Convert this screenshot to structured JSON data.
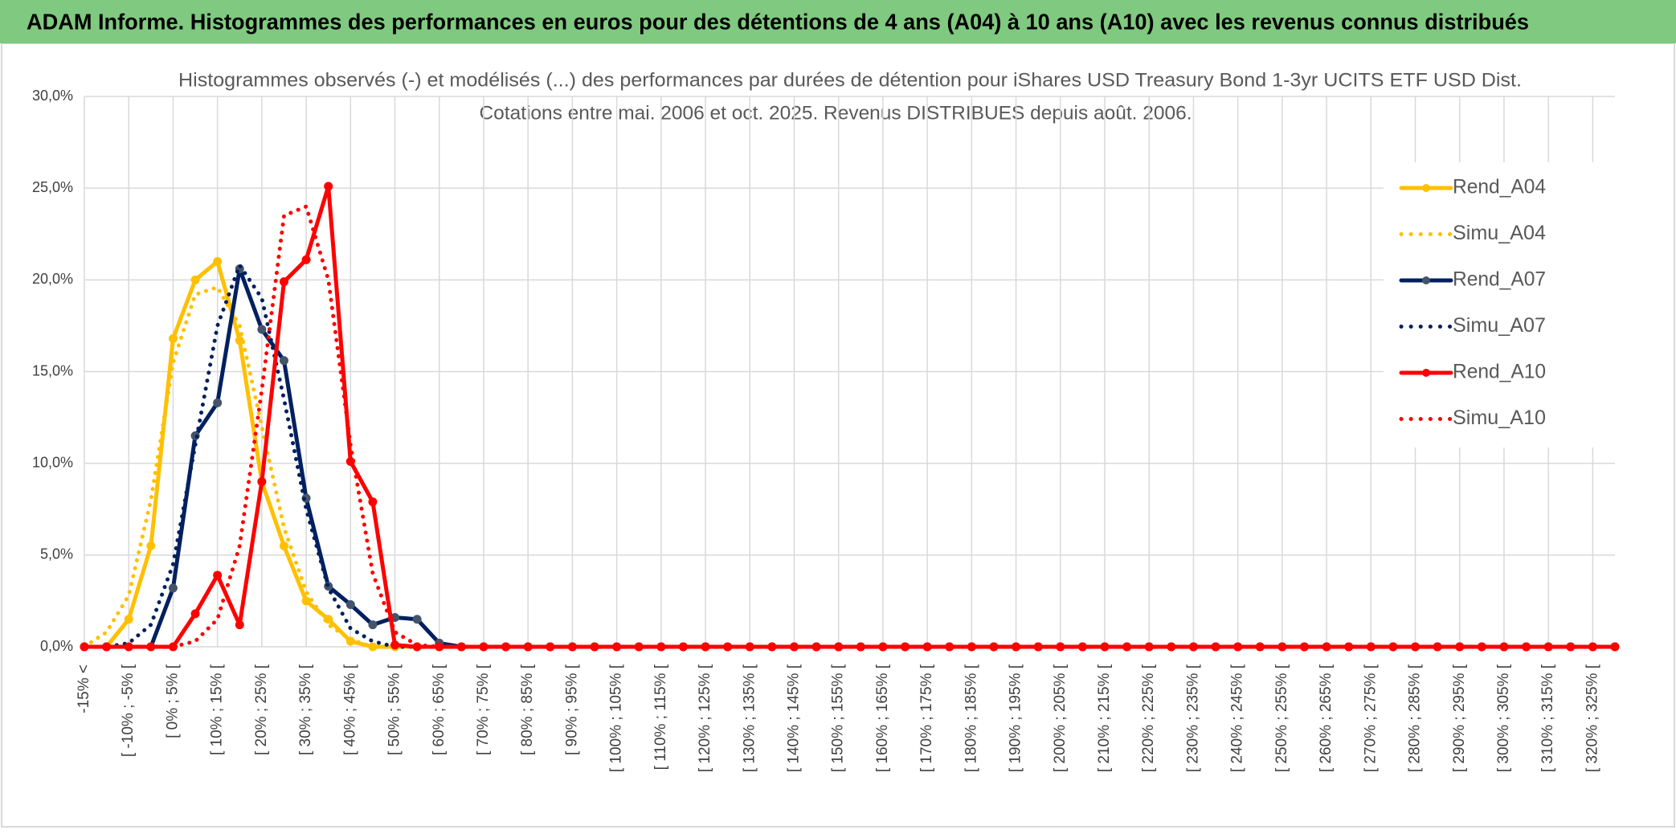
{
  "header": {
    "title": "ADAM Informe. Histogrammes des performances en euros pour des détentions de 4 ans (A04) à 10 ans (A10) avec les revenus connus distribués"
  },
  "chart_data": {
    "type": "line",
    "title": "Histogrammes observés (-) et modélisés (...) des performances par durées de détention pour iShares USD Treasury Bond 1-3yr UCITS ETF USD Dist.",
    "subtitle": "Cotations entre mai. 2006 et oct. 2025. Revenus DISTRIBUES depuis août. 2006.",
    "categories": [
      "-15% <",
      null,
      "[ -10% ; -5% [",
      null,
      "[ 0% ; 5% [",
      null,
      "[ 10% ; 15% [",
      null,
      "[ 20% ; 25% [",
      null,
      "[ 30% ; 35% [",
      null,
      "[ 40% ; 45% [",
      null,
      "[ 50% ; 55% [",
      null,
      "[ 60% ; 65% [",
      null,
      "[ 70% ; 75% [",
      null,
      "[ 80% ; 85% [",
      null,
      "[ 90% ; 95% [",
      null,
      "[ 100% ; 105% [",
      null,
      "[ 110% ; 115% [",
      null,
      "[ 120% ; 125% [",
      null,
      "[ 130% ; 135% [",
      null,
      "[ 140% ; 145% [",
      null,
      "[ 150% ; 155% [",
      null,
      "[ 160% ; 165% [",
      null,
      "[ 170% ; 175% [",
      null,
      "[ 180% ; 185% [",
      null,
      "[ 190% ; 195% [",
      null,
      "[ 200% ; 205% [",
      null,
      "[ 210% ; 215% [",
      null,
      "[ 220% ; 225% [",
      null,
      "[ 230% ; 235% [",
      null,
      "[ 240% ; 245% [",
      null,
      "[ 250% ; 255% [",
      null,
      "[ 260% ; 265% [",
      null,
      "[ 270% ; 275% [",
      null,
      "[ 280% ; 285% [",
      null,
      "[ 290% ; 295% [",
      null,
      "[ 300% ; 305% [",
      null,
      "[ 310% ; 315% [",
      null,
      "[ 320% ; 325% [",
      null
    ],
    "series": [
      {
        "name": "Rend_A04",
        "color": "#ffc000",
        "style": "solid",
        "markers": true,
        "marker_color": "#ffc000",
        "values": [
          0,
          0,
          1.5,
          5.5,
          16.8,
          20,
          21,
          16.7,
          9,
          5.5,
          2.5,
          1.5,
          0.3,
          0,
          0,
          0,
          0,
          0,
          0,
          0,
          0,
          0,
          0,
          0,
          0,
          0,
          0,
          0,
          0,
          0,
          0,
          0,
          0,
          0,
          0,
          0,
          0,
          0,
          0,
          0,
          0,
          0,
          0,
          0,
          0,
          0,
          0,
          0,
          0,
          0,
          0,
          0,
          0,
          0,
          0,
          0,
          0,
          0,
          0,
          0,
          0,
          0,
          0,
          0,
          0,
          0,
          0,
          0,
          0,
          0
        ]
      },
      {
        "name": "Simu_A04",
        "color": "#ffc000",
        "style": "dotted",
        "markers": false,
        "values": [
          0,
          0.8,
          2.8,
          8,
          15.5,
          19.2,
          19.6,
          17.5,
          12,
          6.5,
          3,
          1.2,
          0.4,
          0,
          0,
          0,
          0,
          0,
          0,
          0,
          0,
          0,
          0,
          0,
          0,
          0,
          0,
          0,
          0,
          0,
          0,
          0,
          0,
          0,
          0,
          0,
          0,
          0,
          0,
          0,
          0,
          0,
          0,
          0,
          0,
          0,
          0,
          0,
          0,
          0,
          0,
          0,
          0,
          0,
          0,
          0,
          0,
          0,
          0,
          0,
          0,
          0,
          0,
          0,
          0,
          0,
          0,
          0,
          0,
          0
        ]
      },
      {
        "name": "Rend_A07",
        "color": "#002060",
        "style": "solid",
        "markers": true,
        "marker_color": "#44546a",
        "values": [
          0,
          0,
          0,
          0,
          3.2,
          11.5,
          13.3,
          20.6,
          17.3,
          15.6,
          8.1,
          3.3,
          2.3,
          1.2,
          1.6,
          1.5,
          0.2,
          0,
          0,
          0,
          0,
          0,
          0,
          0,
          0,
          0,
          0,
          0,
          0,
          0,
          0,
          0,
          0,
          0,
          0,
          0,
          0,
          0,
          0,
          0,
          0,
          0,
          0,
          0,
          0,
          0,
          0,
          0,
          0,
          0,
          0,
          0,
          0,
          0,
          0,
          0,
          0,
          0,
          0,
          0,
          0,
          0,
          0,
          0,
          0,
          0,
          0,
          0,
          0,
          0
        ]
      },
      {
        "name": "Simu_A07",
        "color": "#002060",
        "style": "dotted",
        "markers": false,
        "values": [
          0,
          0,
          0.2,
          1.2,
          4.5,
          11,
          17.5,
          20.8,
          19,
          13.5,
          7.5,
          3.2,
          1,
          0.3,
          0,
          0,
          0,
          0,
          0,
          0,
          0,
          0,
          0,
          0,
          0,
          0,
          0,
          0,
          0,
          0,
          0,
          0,
          0,
          0,
          0,
          0,
          0,
          0,
          0,
          0,
          0,
          0,
          0,
          0,
          0,
          0,
          0,
          0,
          0,
          0,
          0,
          0,
          0,
          0,
          0,
          0,
          0,
          0,
          0,
          0,
          0,
          0,
          0,
          0,
          0,
          0,
          0,
          0,
          0,
          0
        ]
      },
      {
        "name": "Rend_A10",
        "color": "#ff0000",
        "style": "solid",
        "markers": true,
        "marker_color": "#ff0000",
        "values": [
          0,
          0,
          0,
          0,
          0,
          1.8,
          3.9,
          1.2,
          9,
          19.9,
          21.1,
          25.1,
          10.1,
          7.9,
          0.1,
          0,
          0,
          0,
          0,
          0,
          0,
          0,
          0,
          0,
          0,
          0,
          0,
          0,
          0,
          0,
          0,
          0,
          0,
          0,
          0,
          0,
          0,
          0,
          0,
          0,
          0,
          0,
          0,
          0,
          0,
          0,
          0,
          0,
          0,
          0,
          0,
          0,
          0,
          0,
          0,
          0,
          0,
          0,
          0,
          0,
          0,
          0,
          0,
          0,
          0,
          0,
          0,
          0,
          0,
          0
        ]
      },
      {
        "name": "Simu_A10",
        "color": "#ff0000",
        "style": "dotted",
        "markers": false,
        "values": [
          0,
          0,
          0,
          0,
          0,
          0.3,
          1.5,
          5.5,
          14,
          23.5,
          24,
          20,
          11,
          4,
          0.8,
          0.1,
          0,
          0,
          0,
          0,
          0,
          0,
          0,
          0,
          0,
          0,
          0,
          0,
          0,
          0,
          0,
          0,
          0,
          0,
          0,
          0,
          0,
          0,
          0,
          0,
          0,
          0,
          0,
          0,
          0,
          0,
          0,
          0,
          0,
          0,
          0,
          0,
          0,
          0,
          0,
          0,
          0,
          0,
          0,
          0,
          0,
          0,
          0,
          0,
          0,
          0,
          0,
          0,
          0,
          0
        ]
      }
    ],
    "ylim": [
      0,
      30
    ],
    "yticks": [
      {
        "value": 0,
        "label": "0,0%"
      },
      {
        "value": 5,
        "label": "5,0%"
      },
      {
        "value": 10,
        "label": "10,0%"
      },
      {
        "value": 15,
        "label": "15,0%"
      },
      {
        "value": 20,
        "label": "20,0%"
      },
      {
        "value": 25,
        "label": "25,0%"
      },
      {
        "value": 30,
        "label": "30,0%"
      }
    ],
    "grid": true,
    "legend": "right"
  }
}
